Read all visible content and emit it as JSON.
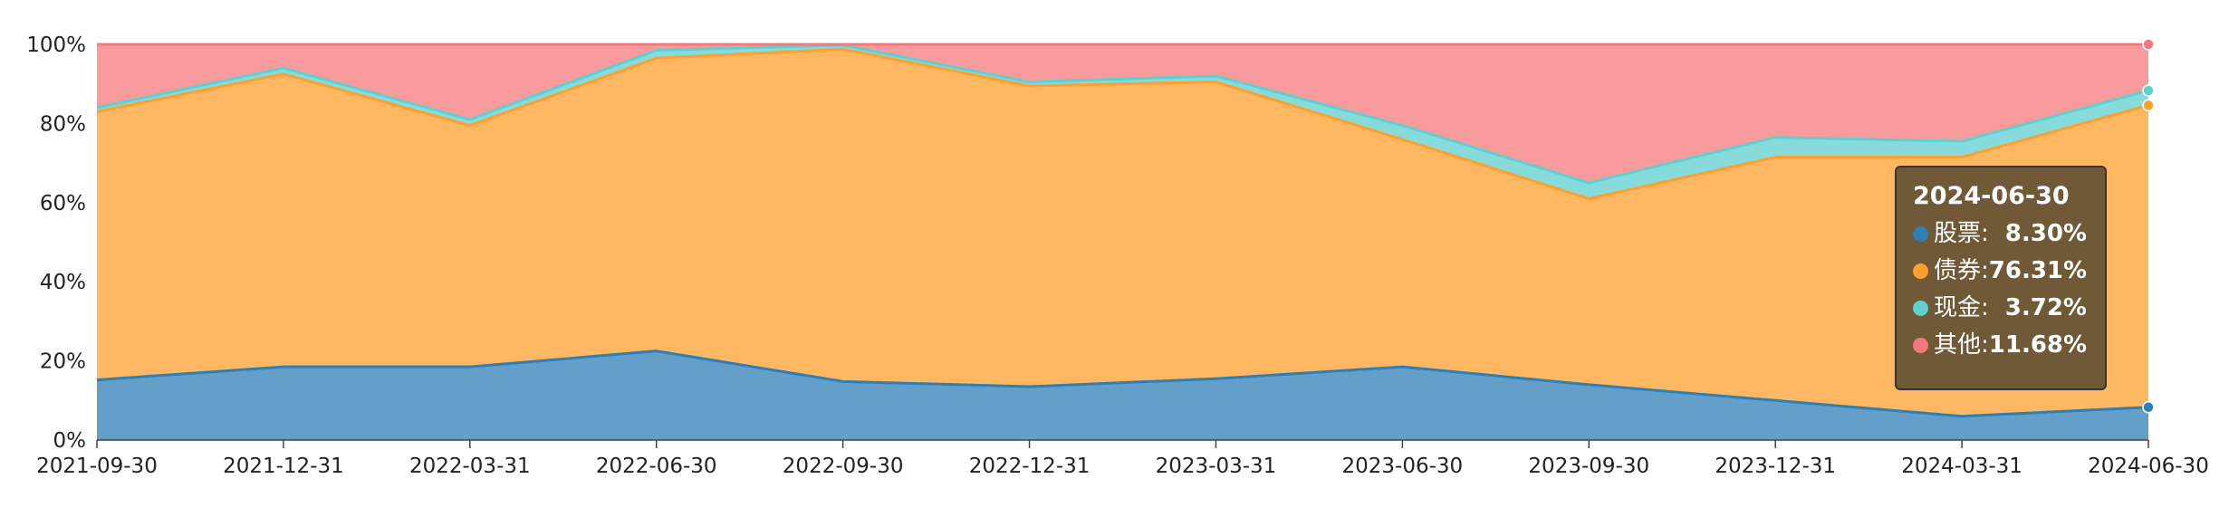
{
  "chart_data": {
    "type": "area",
    "stacked": true,
    "categories": [
      "2021-09-30",
      "2021-12-31",
      "2022-03-31",
      "2022-06-30",
      "2022-09-30",
      "2022-12-31",
      "2023-03-31",
      "2023-06-30",
      "2023-09-30",
      "2023-12-31",
      "2024-03-31",
      "2024-06-30"
    ],
    "y_ticks": [
      "0%",
      "20%",
      "40%",
      "60%",
      "80%",
      "100%"
    ],
    "ylim": [
      0,
      100
    ],
    "grid": false,
    "series": [
      {
        "name": "股票",
        "color": "#2f7fb5",
        "values": [
          15.2,
          18.5,
          18.5,
          22.5,
          14.8,
          13.5,
          15.5,
          18.5,
          14.0,
          10.0,
          6.0,
          8.3
        ]
      },
      {
        "name": "债券",
        "color": "#ff9f2e",
        "values": [
          67.8,
          74.0,
          61.0,
          74.0,
          84.0,
          76.0,
          75.0,
          57.5,
          47.0,
          61.5,
          65.5,
          76.31
        ]
      },
      {
        "name": "现金",
        "color": "#5fcfcf",
        "values": [
          1.0,
          1.5,
          1.5,
          2.0,
          1.0,
          1.0,
          1.5,
          3.5,
          4.0,
          5.0,
          4.0,
          3.72
        ]
      },
      {
        "name": "其他",
        "color": "#f4797c",
        "values": [
          16.0,
          6.0,
          19.0,
          1.5,
          0.2,
          9.5,
          8.0,
          20.5,
          35.0,
          23.5,
          24.5,
          11.68
        ]
      }
    ],
    "tooltip": {
      "title": "2024-06-30",
      "rows": [
        {
          "name": "股票:",
          "value": "8.30%",
          "color": "#2f7fb5"
        },
        {
          "name": "债券:",
          "value": "76.31%",
          "color": "#ff9f2e"
        },
        {
          "name": "现金:",
          "value": "3.72%",
          "color": "#5fcfcf"
        },
        {
          "name": "其他:",
          "value": "11.68%",
          "color": "#f4797c"
        }
      ]
    }
  }
}
